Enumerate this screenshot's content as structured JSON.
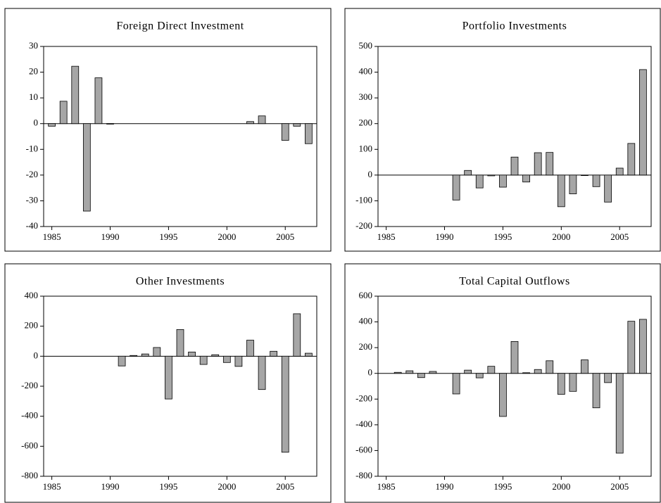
{
  "chart_data": [
    {
      "type": "bar",
      "title": "Foreign Direct Investment",
      "color": "#a6a6a6",
      "x": [
        1985,
        1986,
        1987,
        1988,
        1989,
        1990,
        1991,
        1992,
        1993,
        1994,
        1995,
        1996,
        1997,
        1998,
        1999,
        2000,
        2001,
        2002,
        2003,
        2004,
        2005,
        2006,
        2007
      ],
      "values": [
        -1,
        8.7,
        22.3,
        -34,
        17.8,
        -0.2,
        null,
        null,
        null,
        null,
        null,
        null,
        null,
        null,
        null,
        null,
        null,
        0.8,
        3,
        null,
        -6.5,
        -1,
        -7.8
      ],
      "xlim": [
        1984.3,
        2007.7
      ],
      "xticks": [
        1985,
        1990,
        1995,
        2000,
        2005
      ],
      "ylim": [
        -40,
        30
      ],
      "yticks": [
        -40,
        -30,
        -20,
        -10,
        0,
        10,
        20,
        30
      ]
    },
    {
      "type": "bar",
      "title": "Portfolio Investments",
      "color": "#a6a6a6",
      "x": [
        1985,
        1986,
        1987,
        1988,
        1989,
        1990,
        1991,
        1992,
        1993,
        1994,
        1995,
        1996,
        1997,
        1998,
        1999,
        2000,
        2001,
        2002,
        2003,
        2004,
        2005,
        2006,
        2007
      ],
      "values": [
        null,
        null,
        null,
        null,
        null,
        null,
        -97,
        18,
        -50,
        -3,
        -47,
        70,
        -27,
        87,
        88,
        -123,
        -73,
        -2,
        -45,
        -105,
        27,
        123,
        410
      ],
      "xlim": [
        1984.3,
        2007.7
      ],
      "xticks": [
        1985,
        1990,
        1995,
        2000,
        2005
      ],
      "ylim": [
        -200,
        500
      ],
      "yticks": [
        -200,
        -100,
        0,
        100,
        200,
        300,
        400,
        500
      ]
    },
    {
      "type": "bar",
      "title": "Other Investments",
      "color": "#a6a6a6",
      "x": [
        1985,
        1986,
        1987,
        1988,
        1989,
        1990,
        1991,
        1992,
        1993,
        1994,
        1995,
        1996,
        1997,
        1998,
        1999,
        2000,
        2001,
        2002,
        2003,
        2004,
        2005,
        2006,
        2007
      ],
      "values": [
        null,
        null,
        null,
        null,
        null,
        null,
        -65,
        5,
        15,
        58,
        -285,
        178,
        28,
        -55,
        10,
        -42,
        -68,
        107,
        -222,
        33,
        -640,
        283,
        20
      ],
      "xlim": [
        1984.3,
        2007.7
      ],
      "xticks": [
        1985,
        1990,
        1995,
        2000,
        2005
      ],
      "ylim": [
        -800,
        400
      ],
      "yticks": [
        -800,
        -600,
        -400,
        -200,
        0,
        200,
        400
      ]
    },
    {
      "type": "bar",
      "title": "Total Capital Outflows",
      "color": "#a6a6a6",
      "x": [
        1985,
        1986,
        1987,
        1988,
        1989,
        1990,
        1991,
        1992,
        1993,
        1994,
        1995,
        1996,
        1997,
        1998,
        1999,
        2000,
        2001,
        2002,
        2003,
        2004,
        2005,
        2006,
        2007
      ],
      "values": [
        null,
        8,
        20,
        -33,
        15,
        null,
        -160,
        25,
        -35,
        55,
        -335,
        248,
        5,
        30,
        98,
        -163,
        -140,
        105,
        -268,
        -72,
        -620,
        405,
        420
      ],
      "xlim": [
        1984.3,
        2007.7
      ],
      "xticks": [
        1985,
        1990,
        1995,
        2000,
        2005
      ],
      "ylim": [
        -800,
        600
      ],
      "yticks": [
        -800,
        -600,
        -400,
        -200,
        0,
        200,
        400,
        600
      ]
    }
  ]
}
